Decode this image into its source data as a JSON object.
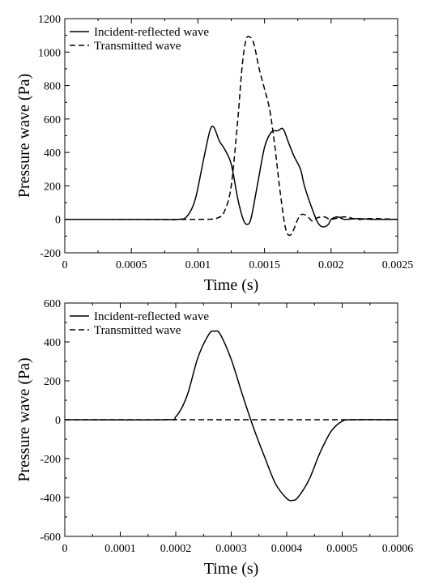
{
  "chart_data": [
    {
      "type": "line",
      "title": "",
      "xlabel": "Time (s)",
      "ylabel": "Pressure wave (Pa)",
      "xlim": [
        0,
        0.0025
      ],
      "ylim": [
        -200,
        1200
      ],
      "xticks": [
        0,
        0.0005,
        0.001,
        0.0015,
        0.002,
        0.0025
      ],
      "xtick_labels": [
        "0",
        "0.0005",
        "0.001",
        "0.0015",
        "0.002",
        "0.0025"
      ],
      "yticks": [
        -200,
        0,
        200,
        400,
        600,
        800,
        1000,
        1200
      ],
      "ytick_labels": [
        "-200",
        "0",
        "200",
        "400",
        "600",
        "800",
        "1000",
        "1200"
      ],
      "grid": false,
      "legend_position": "top-left",
      "series": [
        {
          "name": "Incident-reflected wave",
          "style": "solid",
          "x": [
            0,
            0.0006,
            0.00085,
            0.00092,
            0.00098,
            0.00104,
            0.00109,
            0.00112,
            0.00116,
            0.0012,
            0.00125,
            0.0013,
            0.00134,
            0.00137,
            0.0014,
            0.00145,
            0.0015,
            0.00155,
            0.0016,
            0.00164,
            0.00168,
            0.00172,
            0.00177,
            0.0018,
            0.00185,
            0.0019,
            0.00194,
            0.00198,
            0.002,
            0.00205,
            0.0021,
            0.0022,
            0.0023,
            0.0025
          ],
          "y": [
            0,
            0,
            0,
            20,
            120,
            350,
            530,
            550,
            470,
            420,
            330,
            120,
            0,
            -30,
            10,
            220,
            430,
            520,
            530,
            540,
            460,
            380,
            300,
            200,
            80,
            -20,
            -45,
            -30,
            0,
            15,
            0,
            5,
            0,
            0
          ]
        },
        {
          "name": "Transmitted wave",
          "style": "dashed",
          "x": [
            0,
            0.001,
            0.00115,
            0.0012,
            0.00125,
            0.0013,
            0.00133,
            0.00136,
            0.00139,
            0.00142,
            0.00146,
            0.0015,
            0.00154,
            0.00158,
            0.00162,
            0.00166,
            0.0017,
            0.00175,
            0.00178,
            0.00182,
            0.00186,
            0.0019,
            0.00195,
            0.002,
            0.0021,
            0.0022,
            0.0023,
            0.0025
          ],
          "y": [
            0,
            0,
            10,
            50,
            200,
            600,
            900,
            1070,
            1090,
            1050,
            900,
            780,
            650,
            420,
            150,
            -60,
            -90,
            0,
            30,
            20,
            -10,
            10,
            15,
            0,
            15,
            0,
            5,
            0
          ]
        }
      ]
    },
    {
      "type": "line",
      "title": "",
      "xlabel": "Time (s)",
      "ylabel": "Pressure wave (Pa)",
      "xlim": [
        0,
        0.0006
      ],
      "ylim": [
        -600,
        600
      ],
      "xticks": [
        0,
        0.0001,
        0.0002,
        0.0003,
        0.0004,
        0.0005,
        0.0006
      ],
      "xtick_labels": [
        "0",
        "0.0001",
        "0.0002",
        "0.0003",
        "0.0004",
        "0.0005",
        "0.0006"
      ],
      "yticks": [
        -600,
        -400,
        -200,
        0,
        200,
        400,
        600
      ],
      "ytick_labels": [
        "-600",
        "-400",
        "-200",
        "0",
        "200",
        "400",
        "600"
      ],
      "grid": false,
      "legend_position": "top-left",
      "series": [
        {
          "name": "Incident-reflected wave",
          "style": "solid",
          "x": [
            0,
            0.00018,
            0.0002,
            0.00022,
            0.00024,
            0.00026,
            0.00027,
            0.00028,
            0.0003,
            0.00032,
            0.00034,
            0.00036,
            0.00038,
            0.0004,
            0.00041,
            0.00042,
            0.00044,
            0.00046,
            0.00048,
            0.0005,
            0.00052,
            0.0006
          ],
          "y": [
            0,
            0,
            15,
            120,
            320,
            440,
            455,
            440,
            310,
            130,
            -40,
            -190,
            -330,
            -405,
            -415,
            -400,
            -310,
            -170,
            -60,
            -8,
            0,
            0
          ]
        },
        {
          "name": "Transmitted wave",
          "style": "dashed",
          "x": [
            0,
            0.0006
          ],
          "y": [
            0,
            0
          ]
        }
      ]
    }
  ]
}
